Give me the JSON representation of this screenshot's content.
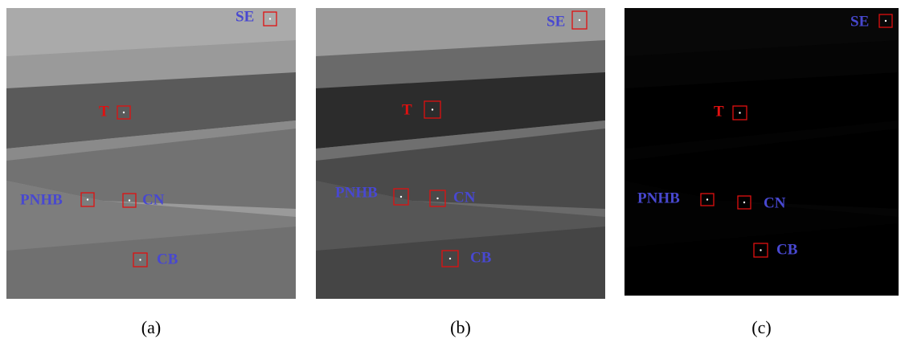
{
  "panels": [
    {
      "caption": "(a)",
      "labels": [
        "SE",
        "T",
        "PNHB",
        "CN",
        "CB"
      ]
    },
    {
      "caption": "(b)",
      "labels": [
        "SE",
        "T",
        "PNHB",
        "CN",
        "CB"
      ]
    },
    {
      "caption": "(c)",
      "labels": [
        "SE",
        "T",
        "PNHB",
        "CN",
        "CB"
      ]
    }
  ]
}
